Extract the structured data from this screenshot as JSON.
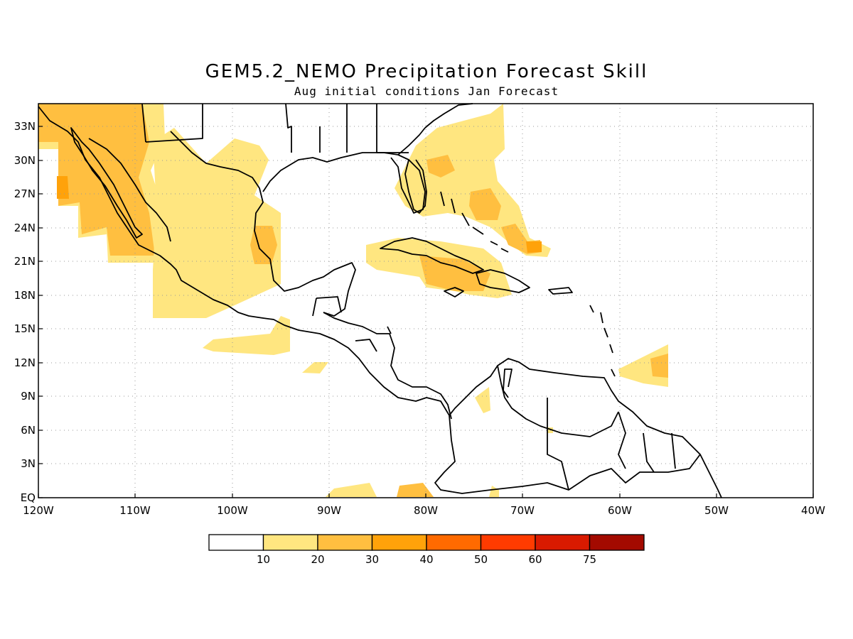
{
  "title": "GEM5.2_NEMO Precipitation Forecast Skill",
  "subtitle": "Aug initial conditions  Jan Forecast",
  "map": {
    "lat_ticks": [
      "33N",
      "30N",
      "27N",
      "24N",
      "21N",
      "18N",
      "15N",
      "12N",
      "9N",
      "6N",
      "3N",
      "EQ"
    ],
    "lon_ticks": [
      "120W",
      "110W",
      "100W",
      "90W",
      "80W",
      "70W",
      "60W",
      "50W",
      "40W"
    ],
    "extent": {
      "lon_min": -120,
      "lon_max": -40,
      "lat_min": 0,
      "lat_max": 35
    },
    "grid": true
  },
  "legend": {
    "labels": [
      "10",
      "20",
      "30",
      "40",
      "50",
      "60",
      "75"
    ],
    "colors": [
      "#ffffff",
      "#ffe680",
      "#ffbf40",
      "#ffa20a",
      "#ff6a00",
      "#ff3b00",
      "#d91a00",
      "#a30a00"
    ]
  }
}
